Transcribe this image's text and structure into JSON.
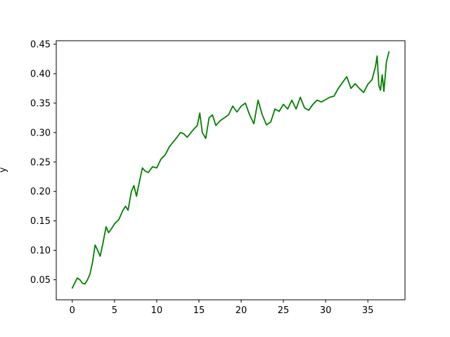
{
  "chart_data": {
    "type": "line",
    "title": "",
    "xlabel": "",
    "ylabel": "y",
    "xlim": [
      -1.9,
      39.4
    ],
    "ylim": [
      0.016,
      0.456
    ],
    "xticks": [
      0,
      5,
      10,
      15,
      20,
      25,
      30,
      35
    ],
    "xtick_labels": [
      "0",
      "5",
      "10",
      "15",
      "20",
      "25",
      "30",
      "35"
    ],
    "yticks": [
      0.05,
      0.1,
      0.15,
      0.2,
      0.25,
      0.3,
      0.35,
      0.4,
      0.45
    ],
    "ytick_labels": [
      "0.05",
      "0.10",
      "0.15",
      "0.20",
      "0.25",
      "0.30",
      "0.35",
      "0.40",
      "0.45"
    ],
    "grid": false,
    "series": [
      {
        "name": "y",
        "color": "#008000",
        "x": [
          0.0,
          0.3,
          0.6,
          0.9,
          1.2,
          1.5,
          1.8,
          2.1,
          2.4,
          2.7,
          3.0,
          3.3,
          3.6,
          4.0,
          4.3,
          4.7,
          5.0,
          5.5,
          6.0,
          6.3,
          6.6,
          7.0,
          7.3,
          7.6,
          8.0,
          8.3,
          8.6,
          9.0,
          9.5,
          10.0,
          10.5,
          11.0,
          11.5,
          12.0,
          12.4,
          12.8,
          13.2,
          13.6,
          14.0,
          14.4,
          14.8,
          15.1,
          15.4,
          15.8,
          16.2,
          16.6,
          17.0,
          17.5,
          18.0,
          18.5,
          19.0,
          19.5,
          20.0,
          20.5,
          21.0,
          21.5,
          22.0,
          22.5,
          23.0,
          23.5,
          24.0,
          24.5,
          25.0,
          25.5,
          26.0,
          26.5,
          27.0,
          27.5,
          28.0,
          28.5,
          29.0,
          29.5,
          30.0,
          30.5,
          31.0,
          31.5,
          32.0,
          32.5,
          33.0,
          33.5,
          34.0,
          34.5,
          35.0,
          35.5,
          35.9,
          36.1,
          36.3,
          36.5,
          36.7,
          36.9,
          37.2,
          37.5
        ],
        "y": [
          0.036,
          0.045,
          0.053,
          0.05,
          0.044,
          0.043,
          0.05,
          0.06,
          0.08,
          0.109,
          0.1,
          0.09,
          0.11,
          0.14,
          0.13,
          0.138,
          0.145,
          0.152,
          0.168,
          0.175,
          0.168,
          0.2,
          0.21,
          0.192,
          0.22,
          0.24,
          0.235,
          0.232,
          0.242,
          0.24,
          0.255,
          0.262,
          0.276,
          0.285,
          0.292,
          0.3,
          0.298,
          0.292,
          0.299,
          0.306,
          0.312,
          0.333,
          0.3,
          0.29,
          0.325,
          0.33,
          0.312,
          0.32,
          0.325,
          0.33,
          0.345,
          0.335,
          0.345,
          0.35,
          0.33,
          0.315,
          0.355,
          0.33,
          0.313,
          0.318,
          0.34,
          0.336,
          0.348,
          0.34,
          0.355,
          0.34,
          0.36,
          0.342,
          0.338,
          0.348,
          0.355,
          0.352,
          0.356,
          0.36,
          0.362,
          0.375,
          0.385,
          0.395,
          0.375,
          0.383,
          0.375,
          0.368,
          0.382,
          0.39,
          0.412,
          0.43,
          0.38,
          0.372,
          0.398,
          0.37,
          0.42,
          0.437
        ]
      }
    ]
  }
}
